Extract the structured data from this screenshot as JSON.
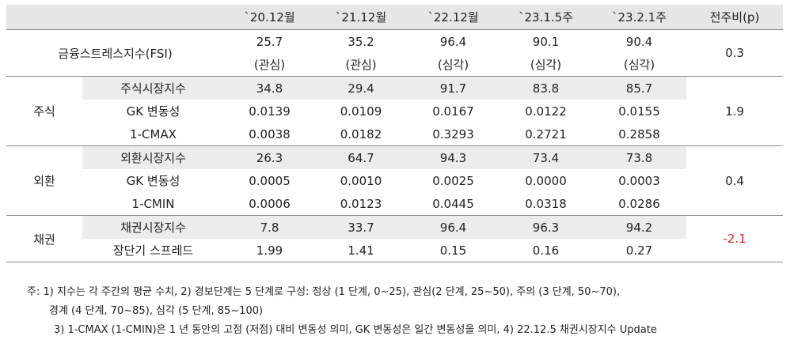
{
  "header": {
    "col0": "",
    "col1": "",
    "p1": "`20.12월",
    "p2": "`21.12월",
    "p3": "`22.12월",
    "p4": "`23.1.5주",
    "p5": "`23.2.1주",
    "change": "전주비(p)"
  },
  "fsi": {
    "label": "금융스트레스지수(FSI)",
    "values": [
      "25.7",
      "35.2",
      "96.4",
      "90.1",
      "90.4"
    ],
    "stages": [
      "(관심)",
      "(관심)",
      "(심각)",
      "(심각)",
      "(심각)"
    ],
    "change": "0.3"
  },
  "groups": [
    {
      "name": "주식",
      "change": "1.9",
      "rows": [
        {
          "label": "주식시장지수",
          "values": [
            "34.8",
            "29.4",
            "91.7",
            "83.8",
            "85.7"
          ]
        },
        {
          "label": "GK 변동성",
          "values": [
            "0.0139",
            "0.0109",
            "0.0167",
            "0.0122",
            "0.0155"
          ]
        },
        {
          "label": "1-CMAX",
          "values": [
            "0.0038",
            "0.0182",
            "0.3293",
            "0.2721",
            "0.2858"
          ]
        }
      ]
    },
    {
      "name": "외환",
      "change": "0.4",
      "rows": [
        {
          "label": "외환시장지수",
          "values": [
            "26.3",
            "64.7",
            "94.3",
            "73.4",
            "73.8"
          ]
        },
        {
          "label": "GK 변동성",
          "values": [
            "0.0005",
            "0.0010",
            "0.0025",
            "0.0000",
            "0.0003"
          ]
        },
        {
          "label": "1-CMIN",
          "values": [
            "0.0006",
            "0.0123",
            "0.0445",
            "0.0318",
            "0.0286"
          ]
        }
      ]
    },
    {
      "name": "채권",
      "change": "-2.1",
      "change_color": "#d9262a",
      "rows": [
        {
          "label": "채권시장지수",
          "values": [
            "7.8",
            "33.7",
            "96.4",
            "96.3",
            "94.2"
          ]
        },
        {
          "label": "장단기 스프레드",
          "values": [
            "1.99",
            "1.41",
            "0.15",
            "0.16",
            "0.27"
          ]
        }
      ]
    }
  ],
  "notes": {
    "line1": "주: 1) 지수는 각 주간의 평균 수치, 2) 경보단계는 5 단계로 구성: 정상 (1 단계, 0~25), 관심(2 단계, 25~50), 주의 (3 단계, 50~70),",
    "line2": "경계 (4 단계, 70~85), 심각 (5 단계, 85~100)",
    "line3": "3) 1-CMAX (1-CMIN)은 1 년 동안의 고점 (저점) 대비 변동성 의미, GK 변동성은 일간 변동성을 의미, 4) 22.12.5 채권시장지수 Update"
  }
}
